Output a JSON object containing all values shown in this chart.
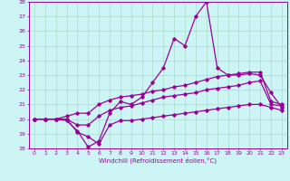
{
  "xlabel": "Windchill (Refroidissement éolien,°C)",
  "bg_color": "#cef5f5",
  "grid_color": "#aaddcc",
  "line_color": "#990099",
  "x": [
    0,
    1,
    2,
    3,
    4,
    5,
    6,
    7,
    8,
    9,
    10,
    11,
    12,
    13,
    14,
    15,
    16,
    17,
    18,
    19,
    20,
    21,
    22,
    23
  ],
  "y_max": [
    20.0,
    20.0,
    20.0,
    19.9,
    19.2,
    18.1,
    18.5,
    20.4,
    21.2,
    21.0,
    21.5,
    22.5,
    23.5,
    25.5,
    25.0,
    27.0,
    28.0,
    23.5,
    23.0,
    23.0,
    23.1,
    23.0,
    21.8,
    20.8
  ],
  "y_up": [
    20.0,
    20.0,
    20.0,
    20.2,
    20.4,
    20.4,
    21.0,
    21.3,
    21.5,
    21.6,
    21.7,
    21.9,
    22.0,
    22.2,
    22.3,
    22.5,
    22.7,
    22.9,
    23.0,
    23.1,
    23.2,
    23.2,
    21.2,
    21.0
  ],
  "y_mid": [
    20.0,
    20.0,
    20.0,
    20.0,
    19.6,
    19.6,
    20.2,
    20.6,
    20.8,
    20.9,
    21.1,
    21.3,
    21.5,
    21.6,
    21.7,
    21.8,
    22.0,
    22.1,
    22.2,
    22.3,
    22.5,
    22.6,
    21.0,
    20.9
  ],
  "y_min": [
    20.0,
    20.0,
    20.0,
    20.0,
    19.1,
    18.8,
    18.3,
    19.6,
    19.9,
    19.9,
    20.0,
    20.1,
    20.2,
    20.3,
    20.4,
    20.5,
    20.6,
    20.7,
    20.8,
    20.9,
    21.0,
    21.0,
    20.8,
    20.6
  ],
  "ylim": [
    18,
    28
  ],
  "yticks": [
    18,
    19,
    20,
    21,
    22,
    23,
    24,
    25,
    26,
    27,
    28
  ]
}
